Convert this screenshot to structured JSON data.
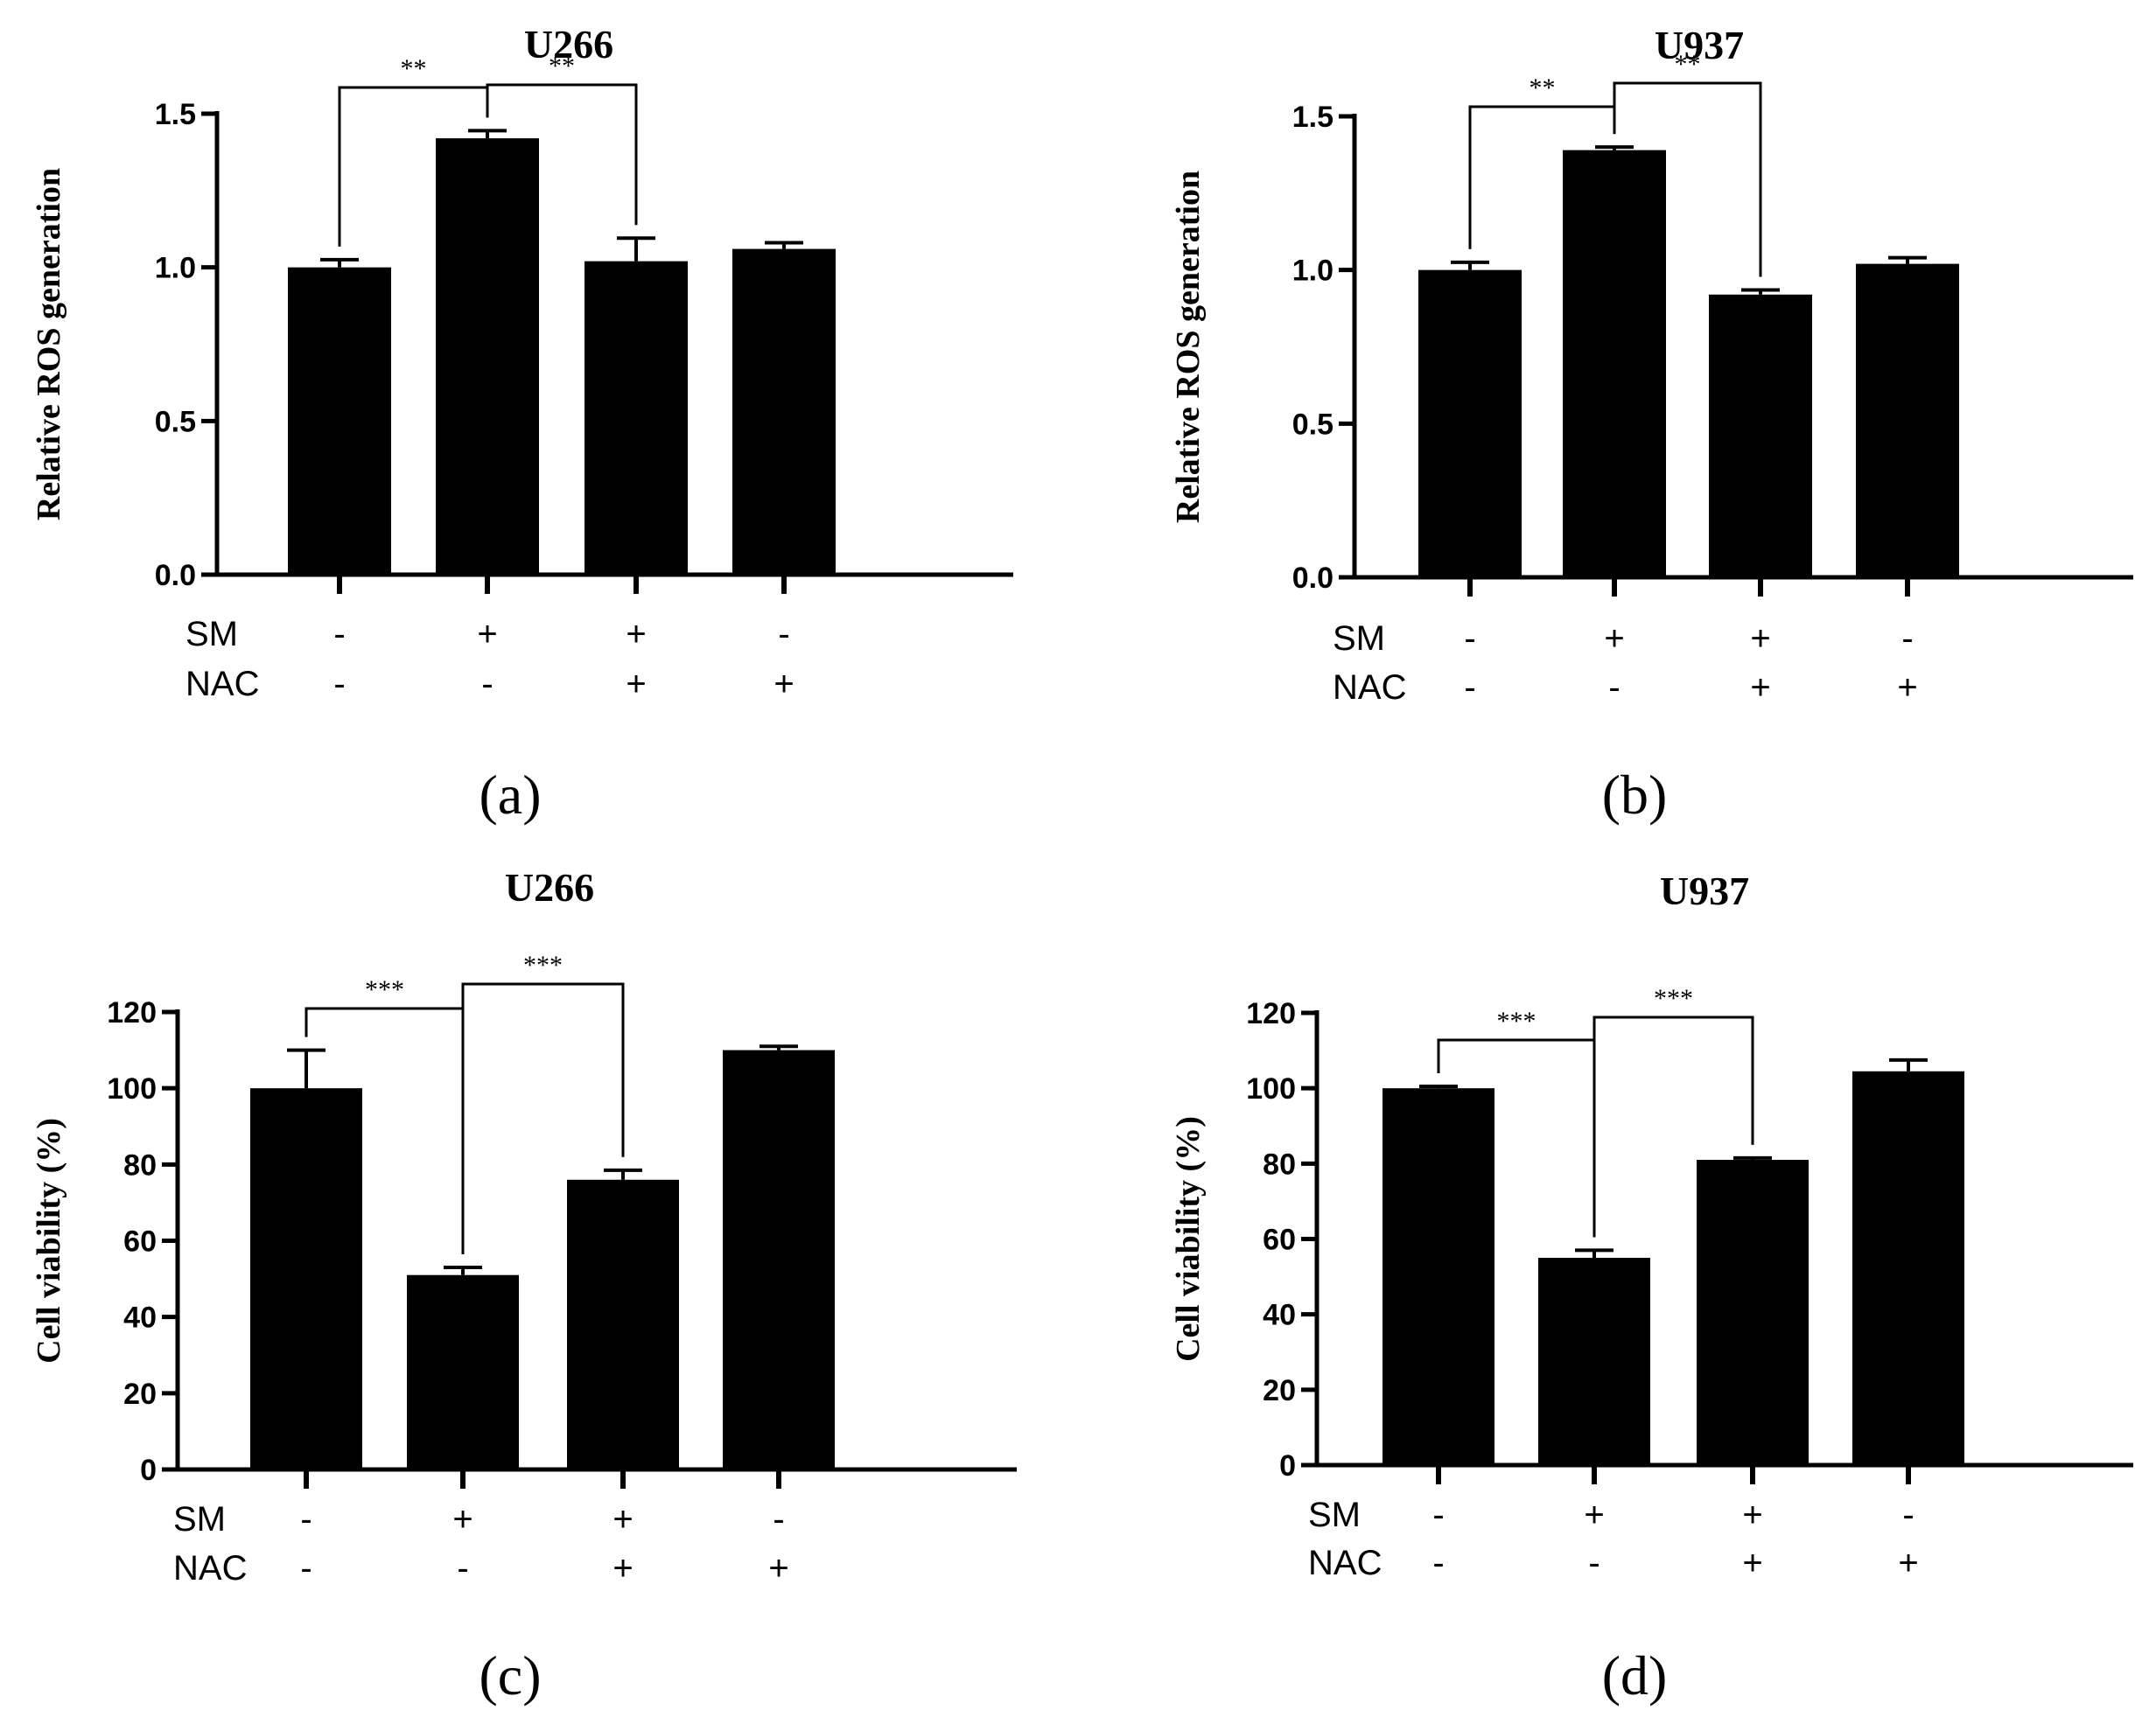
{
  "chart_data": [
    {
      "type": "bar",
      "panel_label": "(a)",
      "title": "U266",
      "ylabel": "Relative ROS generation",
      "xlabel": "",
      "ylim": [
        0,
        1.5
      ],
      "yticks": [
        "0.0",
        "0.5",
        "1.0",
        "1.5"
      ],
      "ytick_values": [
        0,
        0.5,
        1.0,
        1.5
      ],
      "categories": [
        "SM-/NAC-",
        "SM+/NAC-",
        "SM+/NAC+",
        "SM-/NAC+"
      ],
      "values": [
        1.0,
        1.42,
        1.02,
        1.06
      ],
      "errors": [
        0.025,
        0.025,
        0.075,
        0.02
      ],
      "conditions": {
        "row_labels": [
          "SM",
          "NAC"
        ],
        "SM": [
          "-",
          "+",
          "+",
          "-"
        ],
        "NAC": [
          "-",
          "-",
          "+",
          "+"
        ]
      },
      "significance": [
        {
          "from": 0,
          "to": 1,
          "label": "**"
        },
        {
          "from": 1,
          "to": 2,
          "label": "**"
        }
      ]
    },
    {
      "type": "bar",
      "panel_label": "(b)",
      "title": "U937",
      "ylabel": "Relative ROS generation",
      "xlabel": "",
      "ylim": [
        0,
        1.5
      ],
      "yticks": [
        "0.0",
        "0.5",
        "1.0",
        "1.5"
      ],
      "ytick_values": [
        0,
        0.5,
        1.0,
        1.5
      ],
      "categories": [
        "SM-/NAC-",
        "SM+/NAC-",
        "SM+/NAC+",
        "SM-/NAC+"
      ],
      "values": [
        1.0,
        1.39,
        0.92,
        1.02
      ],
      "errors": [
        0.025,
        0.01,
        0.015,
        0.02
      ],
      "conditions": {
        "row_labels": [
          "SM",
          "NAC"
        ],
        "SM": [
          "-",
          "+",
          "+",
          "-"
        ],
        "NAC": [
          "-",
          "-",
          "+",
          "+"
        ]
      },
      "significance": [
        {
          "from": 0,
          "to": 1,
          "label": "**"
        },
        {
          "from": 1,
          "to": 2,
          "label": "**"
        }
      ]
    },
    {
      "type": "bar",
      "panel_label": "(c)",
      "title": "U266",
      "ylabel": "Cell viability (%)",
      "xlabel": "",
      "ylim": [
        0,
        120
      ],
      "yticks": [
        "0",
        "20",
        "40",
        "60",
        "80",
        "100",
        "120"
      ],
      "ytick_values": [
        0,
        20,
        40,
        60,
        80,
        100,
        120
      ],
      "categories": [
        "SM-/NAC-",
        "SM+/NAC-",
        "SM+/NAC+",
        "SM-/NAC+"
      ],
      "values": [
        100,
        51,
        76,
        110
      ],
      "errors": [
        10,
        2,
        2.5,
        1
      ],
      "conditions": {
        "row_labels": [
          "SM",
          "NAC"
        ],
        "SM": [
          "-",
          "+",
          "+",
          "-"
        ],
        "NAC": [
          "-",
          "-",
          "+",
          "+"
        ]
      },
      "significance": [
        {
          "from": 0,
          "to": 1,
          "label": "***"
        },
        {
          "from": 1,
          "to": 2,
          "label": "***"
        }
      ]
    },
    {
      "type": "bar",
      "panel_label": "(d)",
      "title": "U937",
      "ylabel": "Cell viability (%)",
      "xlabel": "",
      "ylim": [
        0,
        120
      ],
      "yticks": [
        "0",
        "20",
        "40",
        "60",
        "80",
        "100",
        "120"
      ],
      "ytick_values": [
        0,
        20,
        40,
        60,
        80,
        100,
        120
      ],
      "categories": [
        "SM-/NAC-",
        "SM+/NAC-",
        "SM+/NAC+",
        "SM-/NAC+"
      ],
      "values": [
        100,
        55,
        81,
        104.5
      ],
      "errors": [
        0.5,
        2,
        0.5,
        3
      ],
      "conditions": {
        "row_labels": [
          "SM",
          "NAC"
        ],
        "SM": [
          "-",
          "+",
          "+",
          "-"
        ],
        "NAC": [
          "-",
          "-",
          "+",
          "+"
        ]
      },
      "significance": [
        {
          "from": 0,
          "to": 1,
          "label": "***"
        },
        {
          "from": 1,
          "to": 2,
          "label": "***"
        }
      ]
    }
  ]
}
